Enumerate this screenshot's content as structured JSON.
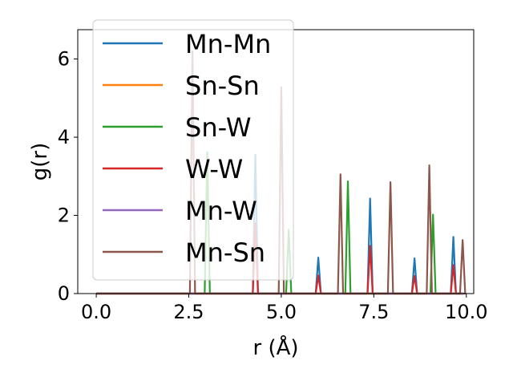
{
  "chart_data": {
    "type": "line",
    "xlabel": "r (Å)",
    "ylabel": "g(r)",
    "xlim": [
      -0.5,
      10.2
    ],
    "ylim": [
      0,
      6.75
    ],
    "xticks": [
      0.0,
      2.5,
      5.0,
      7.5,
      10.0
    ],
    "xtick_labels": [
      "0.0",
      "2.5",
      "5.0",
      "7.5",
      "10.0"
    ],
    "yticks": [
      0,
      2,
      4,
      6
    ],
    "ytick_labels": [
      "0",
      "2",
      "4",
      "6"
    ],
    "grid": false,
    "legend_position": "upper-left",
    "series": [
      {
        "name": "Mn-Mn",
        "color": "#1f77b4",
        "peaks": [
          [
            4.3,
            3.55
          ],
          [
            6.0,
            0.92
          ],
          [
            7.4,
            2.43
          ],
          [
            8.6,
            0.9
          ],
          [
            9.65,
            1.45
          ]
        ]
      },
      {
        "name": "Sn-Sn",
        "color": "#ff7f0e",
        "peaks": []
      },
      {
        "name": "Sn-W",
        "color": "#2ca02c",
        "peaks": [
          [
            3.0,
            3.62
          ],
          [
            5.2,
            1.63
          ],
          [
            6.8,
            2.87
          ],
          [
            9.1,
            2.02
          ]
        ]
      },
      {
        "name": "W-W",
        "color": "#d62728",
        "peaks": [
          [
            4.3,
            1.8
          ],
          [
            6.0,
            0.46
          ],
          [
            7.4,
            1.22
          ],
          [
            8.6,
            0.45
          ],
          [
            9.65,
            0.73
          ]
        ]
      },
      {
        "name": "Mn-W",
        "color": "#9467bd",
        "peaks": []
      },
      {
        "name": "Mn-Sn",
        "color": "#8c564b",
        "peaks": [
          [
            2.6,
            6.2
          ],
          [
            5.0,
            5.28
          ],
          [
            6.6,
            3.05
          ],
          [
            7.95,
            2.85
          ],
          [
            9.0,
            3.28
          ],
          [
            9.9,
            1.37
          ]
        ]
      }
    ]
  }
}
